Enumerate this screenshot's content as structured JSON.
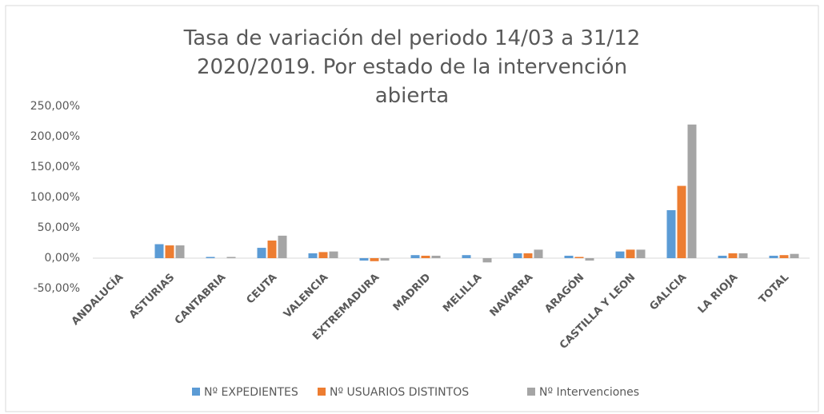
{
  "chart_data": {
    "type": "bar",
    "title": "Tasa de variación del periodo 14/03 a 31/12 2020/2019. Por estado de la intervención abierta",
    "categories": [
      "ANDALUCÍA",
      "ASTURIAS",
      "CANTABRIA",
      "CEUTA",
      "VALENCIA",
      "EXTREMADURA",
      "MADRID",
      "MELILLA",
      "NAVARRA",
      "ARAGÓN",
      "CASTILLA Y LEON",
      "GALICIA",
      "LA RIOJA",
      "TOTAL"
    ],
    "series": [
      {
        "name": "Nº EXPEDIENTES",
        "color": "#5b9bd5",
        "values": [
          0,
          23,
          2,
          17,
          8,
          -4,
          5,
          5,
          8,
          4,
          11,
          79,
          4,
          4
        ]
      },
      {
        "name": "Nº USUARIOS DISTINTOS",
        "color": "#ed7d31",
        "values": [
          0,
          21,
          0,
          29,
          10,
          -5,
          4,
          0,
          8,
          2,
          14,
          119,
          8,
          5
        ]
      },
      {
        "name": "Nº Intervenciones",
        "color": "#a5a5a5",
        "values": [
          0,
          21,
          2,
          37,
          11,
          -4,
          4,
          -7,
          14,
          -4,
          14,
          220,
          8,
          7
        ]
      }
    ],
    "ylim": [
      -50,
      250
    ],
    "yticks": [
      {
        "value": -50,
        "label": "-50,00%"
      },
      {
        "value": 0,
        "label": "0,00%"
      },
      {
        "value": 50,
        "label": "50,00%"
      },
      {
        "value": 100,
        "label": "100,00%"
      },
      {
        "value": 150,
        "label": "150,00%"
      },
      {
        "value": 200,
        "label": "200,00%"
      },
      {
        "value": 250,
        "label": "250,00%"
      }
    ],
    "grid": false,
    "legend": "bottom"
  }
}
